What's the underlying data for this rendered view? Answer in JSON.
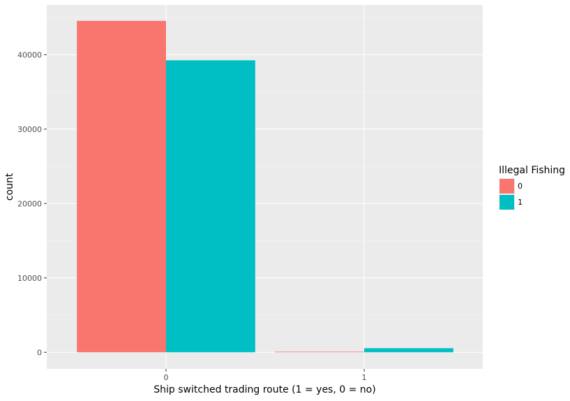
{
  "chart_data": {
    "type": "bar",
    "xlabel": "Ship switched trading route (1 = yes, 0 = no)",
    "ylabel": "count",
    "categories": [
      "0",
      "1"
    ],
    "series": [
      {
        "name": "0",
        "color": "#F8766D",
        "values": [
          44550,
          80
        ]
      },
      {
        "name": "1",
        "color": "#00BFC4",
        "values": [
          39250,
          550
        ]
      }
    ],
    "ylim": [
      -2230,
      46700
    ],
    "y_ticks": [
      0,
      10000,
      20000,
      30000,
      40000
    ],
    "y_tick_labels": [
      "0",
      "10000",
      "20000",
      "30000",
      "40000"
    ],
    "legend": {
      "title": "Illegal Fishing",
      "position": "right"
    },
    "grid": true,
    "panel_background": "#EBEBEB"
  }
}
